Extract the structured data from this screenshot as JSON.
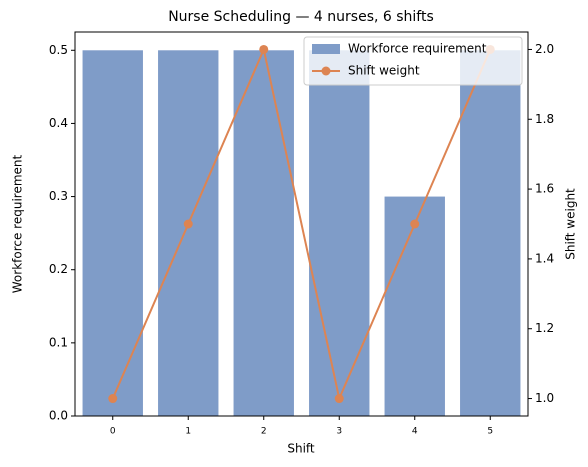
{
  "chart_data": {
    "type": "bar",
    "title": "Nurse Scheduling — 4 nurses, 6 shifts",
    "x_label": "Shift",
    "y_label": "Workforce requirement",
    "y2_label": "Shift weight",
    "categories": [
      "0",
      "1",
      "2",
      "3",
      "4",
      "5"
    ],
    "series": [
      {
        "name": "Workforce requirement",
        "type": "bar",
        "color": "#7f9cc8",
        "values": [
          0.5,
          0.5,
          0.5,
          0.5,
          0.3,
          0.5
        ]
      },
      {
        "name": "Shift weight",
        "type": "line",
        "axis": "y2",
        "color": "#dd8452",
        "values": [
          1.0,
          1.5,
          2.0,
          1.0,
          1.5,
          2.0
        ]
      }
    ],
    "ylim": [
      0,
      0.525
    ],
    "yticks": [
      {
        "value": 0,
        "label": "0.0"
      },
      0.1,
      0.2,
      0.3,
      0.4,
      0.5
    ],
    "y2lim": [
      0.95,
      2.05
    ],
    "y2ticks": [
      {
        "value": 1,
        "label": "1.0"
      },
      1.2,
      1.4,
      1.6,
      1.8,
      {
        "value": 2,
        "label": "2.0"
      }
    ],
    "legend": "upper right"
  }
}
